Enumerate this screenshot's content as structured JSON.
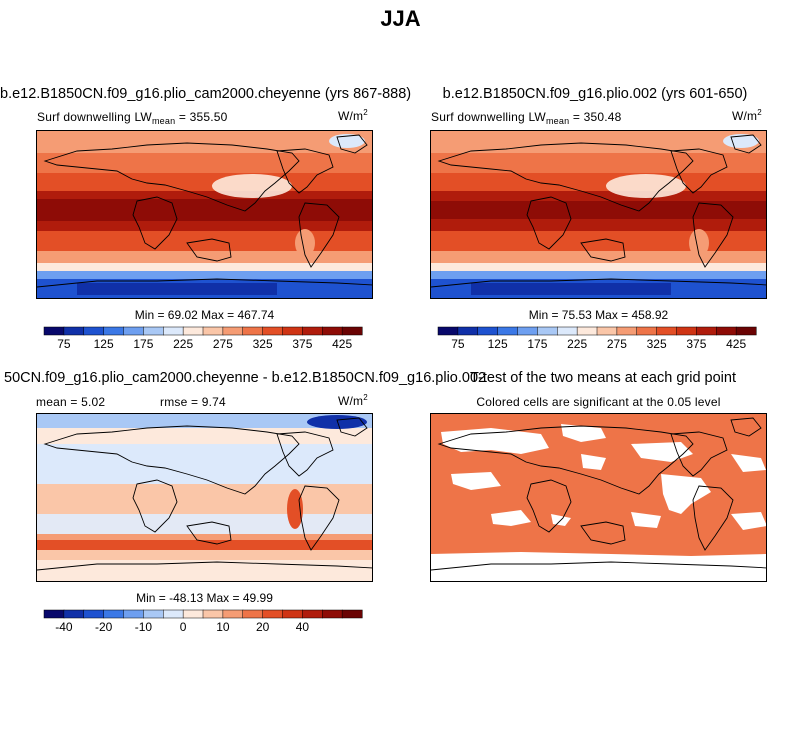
{
  "figure_title": "JJA",
  "panels": [
    {
      "title": "b.e12.B1850CN.f09_g16.plio_cam2000.cheyenne (yrs 867-888)",
      "left_label_main": "Surf downwelling LW",
      "left_label_sub": "mean",
      "left_label_value": "= 355.50",
      "units": "W/m",
      "units_sup": "2",
      "min_max": "Min =  69.02 Max = 467.74"
    },
    {
      "title": "b.e12.B1850CN.f09_g16.plio.002 (yrs 601-650)",
      "left_label_main": "Surf downwelling LW",
      "left_label_sub": "mean",
      "left_label_value": "= 350.48",
      "units": "W/m",
      "units_sup": "2",
      "min_max": "Min =  75.53 Max = 458.92"
    },
    {
      "title": "50CN.f09_g16.plio_cam2000.cheyenne - b.e12.B1850CN.f09_g16.plio.002",
      "stats_mean": "mean =   5.02",
      "stats_rmse": "rmse =   9.74",
      "units": "W/m",
      "units_sup": "2",
      "min_max": "Min = -48.13 Max =  49.99"
    },
    {
      "title": "T-test of the two means at each grid point",
      "subtitle": "Colored cells are significant at the 0.05 level"
    }
  ],
  "chart_data": [
    {
      "type": "heatmap",
      "title": "b.e12.B1850CN.f09_g16.plio_cam2000.cheyenne (yrs 867-888)",
      "variable": "Surf downwelling LW",
      "units": "W/m2",
      "mean": 355.5,
      "min": 69.02,
      "max": 467.74,
      "colorbar_levels": [
        75,
        100,
        125,
        150,
        175,
        200,
        225,
        250,
        275,
        300,
        325,
        350,
        375,
        400,
        425
      ],
      "colorbar_tick_labels": [
        "75",
        "125",
        "175",
        "225",
        "275",
        "325",
        "375",
        "425"
      ],
      "colorbar_colors": [
        "#08086b",
        "#1030a8",
        "#1e52d0",
        "#3b78e6",
        "#6e9ff0",
        "#a9c8f5",
        "#dce9fb",
        "#fde9dc",
        "#fac6a8",
        "#f59c74",
        "#ee7448",
        "#e34f26",
        "#cf3414",
        "#b01c0c",
        "#8e0c06",
        "#6a0303"
      ]
    },
    {
      "type": "heatmap",
      "title": "b.e12.B1850CN.f09_g16.plio.002 (yrs 601-650)",
      "variable": "Surf downwelling LW",
      "units": "W/m2",
      "mean": 350.48,
      "min": 75.53,
      "max": 458.92,
      "colorbar_levels": [
        75,
        100,
        125,
        150,
        175,
        200,
        225,
        250,
        275,
        300,
        325,
        350,
        375,
        400,
        425
      ],
      "colorbar_tick_labels": [
        "75",
        "125",
        "175",
        "225",
        "275",
        "325",
        "375",
        "425"
      ],
      "colorbar_colors": [
        "#08086b",
        "#1030a8",
        "#1e52d0",
        "#3b78e6",
        "#6e9ff0",
        "#a9c8f5",
        "#dce9fb",
        "#fde9dc",
        "#fac6a8",
        "#f59c74",
        "#ee7448",
        "#e34f26",
        "#cf3414",
        "#b01c0c",
        "#8e0c06",
        "#6a0303"
      ]
    },
    {
      "type": "heatmap",
      "title": "50CN.f09_g16.plio_cam2000.cheyenne - b.e12.B1850CN.f09_g16.plio.002",
      "units": "W/m2",
      "mean": 5.02,
      "rmse": 9.74,
      "min": -48.13,
      "max": 49.99,
      "colorbar_tick_labels": [
        "-40",
        "-20",
        "-10",
        "0",
        "10",
        "20",
        "40"
      ],
      "colorbar_colors": [
        "#08086b",
        "#1030a8",
        "#1e52d0",
        "#3b78e6",
        "#6e9ff0",
        "#a9c8f5",
        "#dce9fb",
        "#fde9dc",
        "#fac6a8",
        "#f59c74",
        "#ee7448",
        "#e34f26",
        "#cf3414",
        "#b01c0c",
        "#8e0c06",
        "#6a0303"
      ]
    },
    {
      "type": "heatmap",
      "title": "T-test of the two means at each grid point",
      "subtitle": "Colored cells are significant at the 0.05 level",
      "significance_level": 0.05,
      "significant_color": "#ee7448",
      "not_significant_color": "#ffffff"
    }
  ],
  "colors": {
    "map_outline": "#000000",
    "land_hot": "#7a0a04",
    "ocean_polar": "#1e52d0"
  }
}
